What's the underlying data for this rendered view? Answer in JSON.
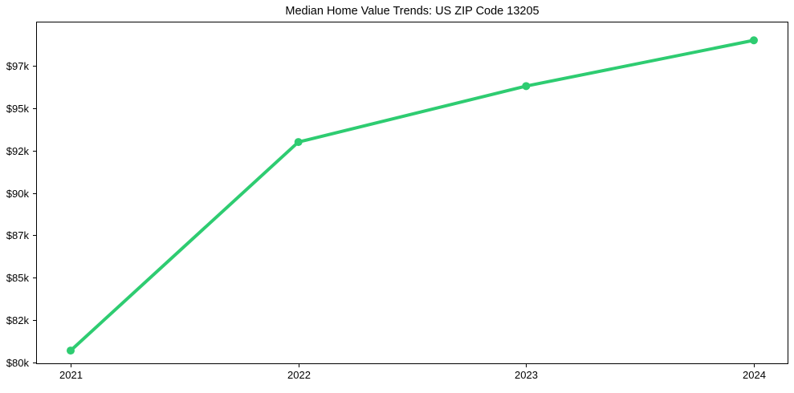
{
  "figure": {
    "background": "#ffffff"
  },
  "chart_data": {
    "type": "line",
    "title": "Median Home Value Trends: US ZIP Code 13205",
    "x": [
      "2021",
      "2022",
      "2023",
      "2024"
    ],
    "values": [
      80700,
      93000,
      96300,
      99000
    ],
    "y_tick_values": [
      80000,
      82500,
      85000,
      87500,
      90000,
      92500,
      95000,
      97500
    ],
    "y_tick_labels": [
      "$80k",
      "$82k",
      "$85k",
      "$87k",
      "$90k",
      "$92k",
      "$95k",
      "$97k"
    ],
    "ylim": [
      79900,
      100100
    ],
    "xlabel": "",
    "ylabel": "",
    "grid": false,
    "legend": null,
    "line_color": "#2ecc71",
    "marker": "circle",
    "line_width": 4,
    "marker_radius": 5,
    "axis_color": "#000000",
    "text_color": "#000000"
  }
}
